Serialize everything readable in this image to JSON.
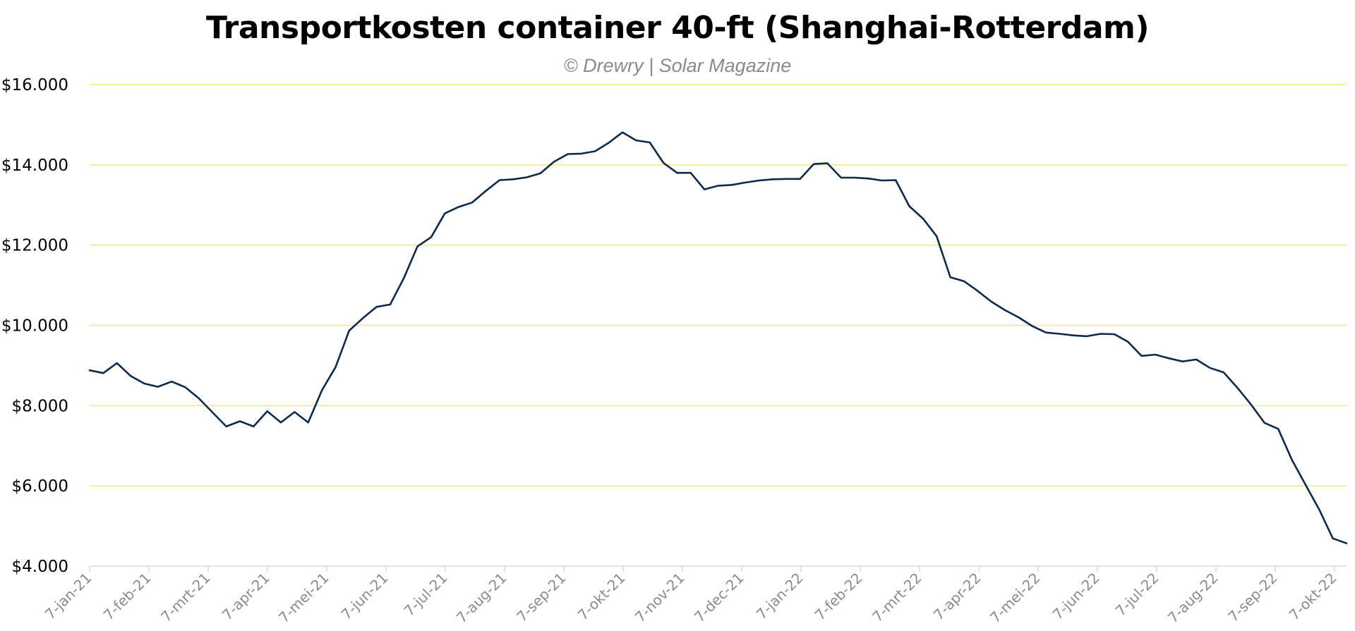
{
  "chart_data": {
    "type": "line",
    "title": "Transportkosten container 40-ft (Shanghai-Rotterdam)",
    "subtitle": "© Drewry | Solar Magazine",
    "xlabel": "",
    "ylabel": "",
    "ylim": [
      4000,
      16000
    ],
    "y_ticks": [
      4000,
      6000,
      8000,
      10000,
      12000,
      14000,
      16000
    ],
    "y_tick_labels": [
      "$4.000",
      "$6.000",
      "$8.000",
      "$10.000",
      "$12.000",
      "$14.000",
      "$16.000"
    ],
    "x_tick_labels": [
      "7-jan-21",
      "7-feb-21",
      "7-mrt-21",
      "7-apr-21",
      "7-mei-21",
      "7-jun-21",
      "7-jul-21",
      "7-aug-21",
      "7-sep-21",
      "7-okt-21",
      "7-nov-21",
      "7-dec-21",
      "7-jan-22",
      "7-feb-22",
      "7-mrt-22",
      "7-apr-22",
      "7-mei-22",
      "7-jun-22",
      "7-jul-22",
      "7-aug-22",
      "7-sep-22",
      "7-okt-22"
    ],
    "grid": "horizontal",
    "colors": {
      "line": "#0d2a4a",
      "grid": "#f5e87a",
      "axis": "#d9d9d9"
    },
    "series": [
      {
        "values": [
          8880,
          8810,
          9060,
          8740,
          8550,
          8470,
          8600,
          8460,
          8180,
          7830,
          7480,
          7610,
          7480,
          7860,
          7580,
          7840,
          7580,
          8380,
          8960,
          9870,
          10180,
          10460,
          10520,
          11180,
          11970,
          12200,
          12790,
          12950,
          13060,
          13350,
          13620,
          13640,
          13690,
          13790,
          14080,
          14270,
          14280,
          14340,
          14550,
          14810,
          14610,
          14560,
          14050,
          13800,
          13800,
          13390,
          13480,
          13500,
          13560,
          13610,
          13640,
          13650,
          13650,
          14020,
          14040,
          13680,
          13680,
          13660,
          13610,
          13620,
          12970,
          12660,
          12220,
          11200,
          11100,
          10860,
          10590,
          10380,
          10200,
          9980,
          9820,
          9790,
          9750,
          9730,
          9790,
          9780,
          9590,
          9240,
          9270,
          9180,
          9100,
          9150,
          8940,
          8830,
          8450,
          8030,
          7570,
          7420,
          6650,
          6030,
          5410,
          4690,
          4570
        ]
      }
    ]
  }
}
